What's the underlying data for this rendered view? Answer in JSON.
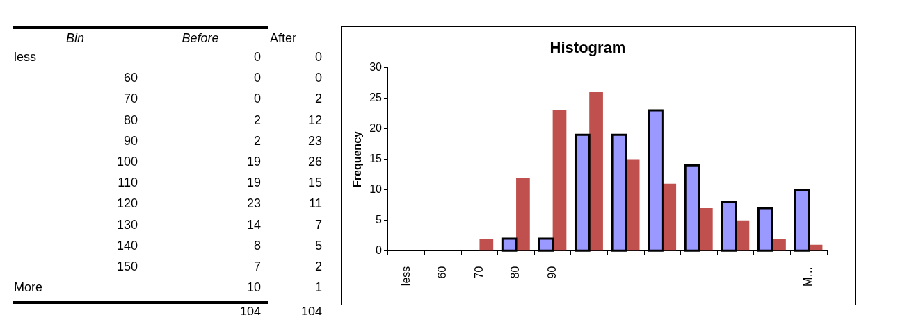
{
  "chart_data": {
    "type": "bar",
    "title": "Histogram",
    "ylabel": "Frequency",
    "categories": [
      "less",
      "60",
      "70",
      "80",
      "90",
      null,
      null,
      null,
      null,
      null,
      null,
      "M…"
    ],
    "series": [
      {
        "color": "#9999ff",
        "values": [
          0,
          0,
          0,
          2,
          2,
          19,
          19,
          23,
          14,
          8,
          7,
          10
        ]
      },
      {
        "color": "#c0504d",
        "values": [
          0,
          0,
          2,
          12,
          23,
          26,
          15,
          11,
          7,
          5,
          2,
          1
        ]
      }
    ],
    "ylim": [
      0,
      30
    ],
    "yticks": [
      0,
      5,
      10,
      15,
      20,
      25,
      30
    ],
    "grid": false,
    "legend": false,
    "annotations": [
      "Bin",
      "Before",
      "After",
      "less",
      "0",
      "0",
      "60",
      "0",
      "0",
      "70",
      "0",
      "2",
      "80",
      "2",
      "12",
      "90",
      "2",
      "23",
      "100",
      "19",
      "26",
      "110",
      "19",
      "15",
      "120",
      "23",
      "11",
      "130",
      "14",
      "7",
      "140",
      "8",
      "5",
      "150",
      "7",
      "2",
      "More",
      "10",
      "1",
      "104",
      "104"
    ]
  }
}
